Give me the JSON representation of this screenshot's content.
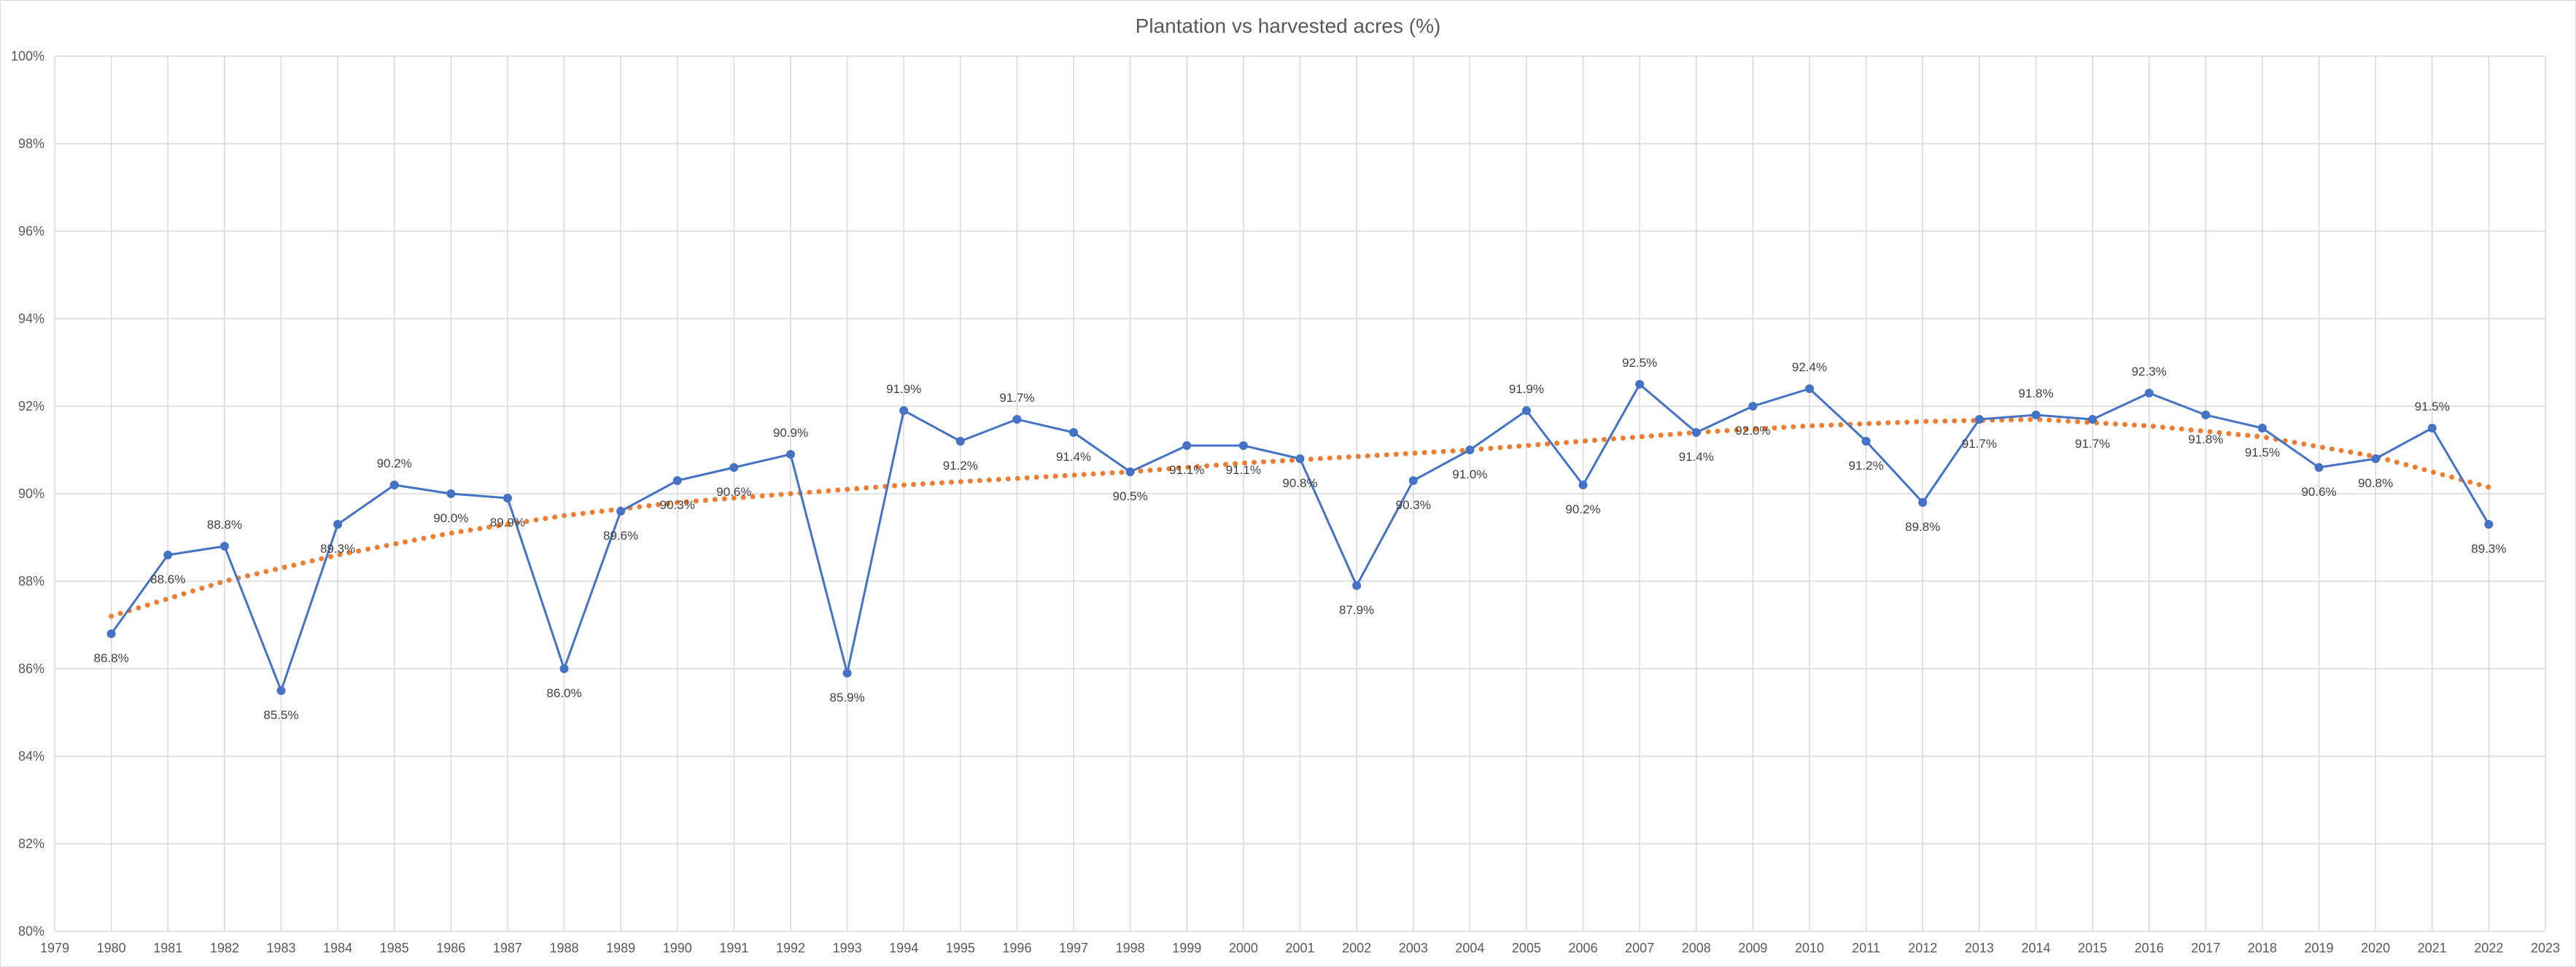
{
  "chart_data": {
    "type": "line",
    "title": "Plantation vs harvested acres (%)",
    "xlabel": "",
    "ylabel": "",
    "x_ticks": [
      "1979",
      "1980",
      "1981",
      "1982",
      "1983",
      "1984",
      "1985",
      "1986",
      "1987",
      "1988",
      "1989",
      "1990",
      "1991",
      "1992",
      "1993",
      "1994",
      "1995",
      "1996",
      "1997",
      "1998",
      "1999",
      "2000",
      "2001",
      "2002",
      "2003",
      "2004",
      "2005",
      "2006",
      "2007",
      "2008",
      "2009",
      "2010",
      "2011",
      "2012",
      "2013",
      "2014",
      "2015",
      "2016",
      "2017",
      "2018",
      "2019",
      "2020",
      "2021",
      "2022",
      "2023"
    ],
    "xlim": [
      1979,
      2023
    ],
    "ylim": [
      80,
      100
    ],
    "y_ticks": [
      "80%",
      "82%",
      "84%",
      "86%",
      "88%",
      "90%",
      "92%",
      "94%",
      "96%",
      "98%",
      "100%"
    ],
    "grid": true,
    "legend": "none",
    "series": [
      {
        "color": "#4472C4",
        "marker": "circle",
        "x": [
          1980,
          1981,
          1982,
          1983,
          1984,
          1985,
          1986,
          1987,
          1988,
          1989,
          1990,
          1991,
          1992,
          1993,
          1994,
          1995,
          1996,
          1997,
          1998,
          1999,
          2000,
          2001,
          2002,
          2003,
          2004,
          2005,
          2006,
          2007,
          2008,
          2009,
          2010,
          2011,
          2012,
          2013,
          2014,
          2015,
          2016,
          2017,
          2018,
          2019,
          2020,
          2021,
          2022
        ],
        "values": [
          86.8,
          88.6,
          88.8,
          85.5,
          89.3,
          90.2,
          90.0,
          89.9,
          86.0,
          89.6,
          90.3,
          90.6,
          90.9,
          85.9,
          91.9,
          91.2,
          91.7,
          91.4,
          90.5,
          91.1,
          91.1,
          90.8,
          87.9,
          90.3,
          91.0,
          91.9,
          90.2,
          92.5,
          91.4,
          92.0,
          92.4,
          91.2,
          89.8,
          91.7,
          91.8,
          91.7,
          92.3,
          91.8,
          91.5,
          90.6,
          90.8,
          91.5,
          89.3
        ],
        "labels": [
          "86.8%",
          "88.6%",
          "88.8%",
          "85.5%",
          "89.3%",
          "90.2%",
          "90.0%",
          "89.9%",
          "86.0%",
          "89.6%",
          "90.3%",
          "90.6%",
          "90.9%",
          "85.9%",
          "91.9%",
          "91.2%",
          "91.7%",
          "91.4%",
          "90.5%",
          "91.1%",
          "91.1%",
          "90.8%",
          "87.9%",
          "90.3%",
          "91.0%",
          "91.9%",
          "90.2%",
          "92.5%",
          "91.4%",
          "92.0%",
          "92.4%",
          "91.2%",
          "89.8%",
          "91.7%",
          "91.8%",
          "91.7%",
          "92.3%",
          "91.8%",
          "91.5%",
          "90.6%",
          "90.8%",
          "91.5%",
          "89.3%"
        ]
      },
      {
        "type": "trendline",
        "style": "dotted",
        "color": "#ED7D31",
        "x": [
          1980,
          1982,
          1984,
          1986,
          1988,
          1990,
          1992,
          1994,
          1996,
          1998,
          2000,
          2002,
          2004,
          2006,
          2008,
          2010,
          2012,
          2014,
          2016,
          2018,
          2020,
          2022
        ],
        "values": [
          87.2,
          88.0,
          88.6,
          89.1,
          89.5,
          89.8,
          90.0,
          90.2,
          90.35,
          90.5,
          90.7,
          90.85,
          91.0,
          91.2,
          91.4,
          91.55,
          91.65,
          91.7,
          91.55,
          91.3,
          90.85,
          90.15
        ]
      }
    ]
  }
}
